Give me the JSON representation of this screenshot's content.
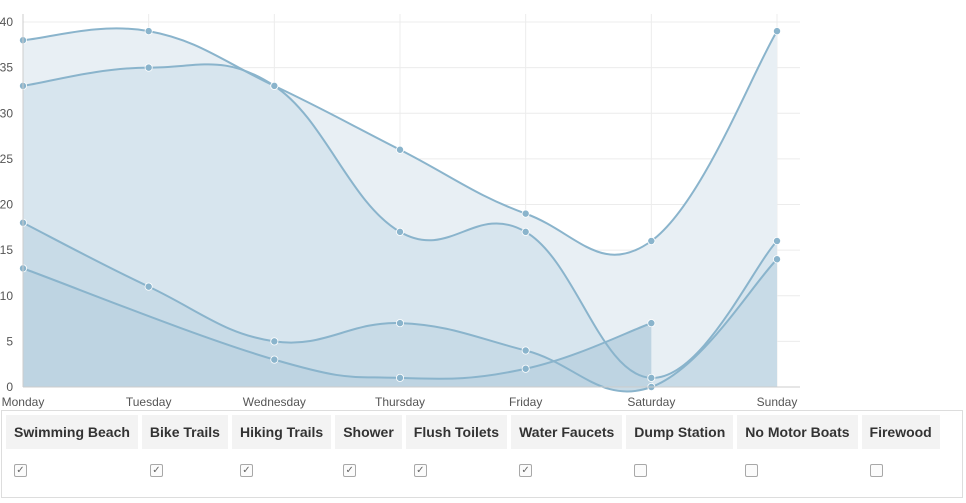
{
  "chart_data": {
    "type": "area",
    "categories": [
      "Monday",
      "Tuesday",
      "Wednesday",
      "Thursday",
      "Friday",
      "Saturday",
      "Sunday"
    ],
    "ylim": [
      0,
      40
    ],
    "yticks": [
      "0",
      "5",
      "10",
      "15",
      "20",
      "25",
      "30",
      "35",
      "40"
    ],
    "grid": true,
    "series": [
      {
        "values": [
          38,
          39,
          33,
          26,
          19,
          16,
          39
        ],
        "fill": "#e8eff4"
      },
      {
        "values": [
          33,
          35,
          33,
          17,
          17,
          1,
          16
        ],
        "fill": "#d7e5ee"
      },
      {
        "values": [
          18,
          11,
          5,
          7,
          4,
          0,
          14
        ],
        "fill": "#c8dbe7"
      },
      {
        "values": [
          13,
          null,
          3,
          1,
          2,
          7,
          null
        ],
        "fill": "#bed4e2"
      }
    ],
    "line_color": "#8ab4cc",
    "point_color": "#8ab4cc"
  },
  "amenities": {
    "headers": [
      "Swimming Beach",
      "Bike Trails",
      "Hiking Trails",
      "Shower",
      "Flush Toilets",
      "Water Faucets",
      "Dump Station",
      "No Motor Boats",
      "Firewood"
    ],
    "checked": [
      true,
      true,
      true,
      true,
      true,
      true,
      false,
      false,
      false
    ],
    "check_glyph": "✓"
  }
}
